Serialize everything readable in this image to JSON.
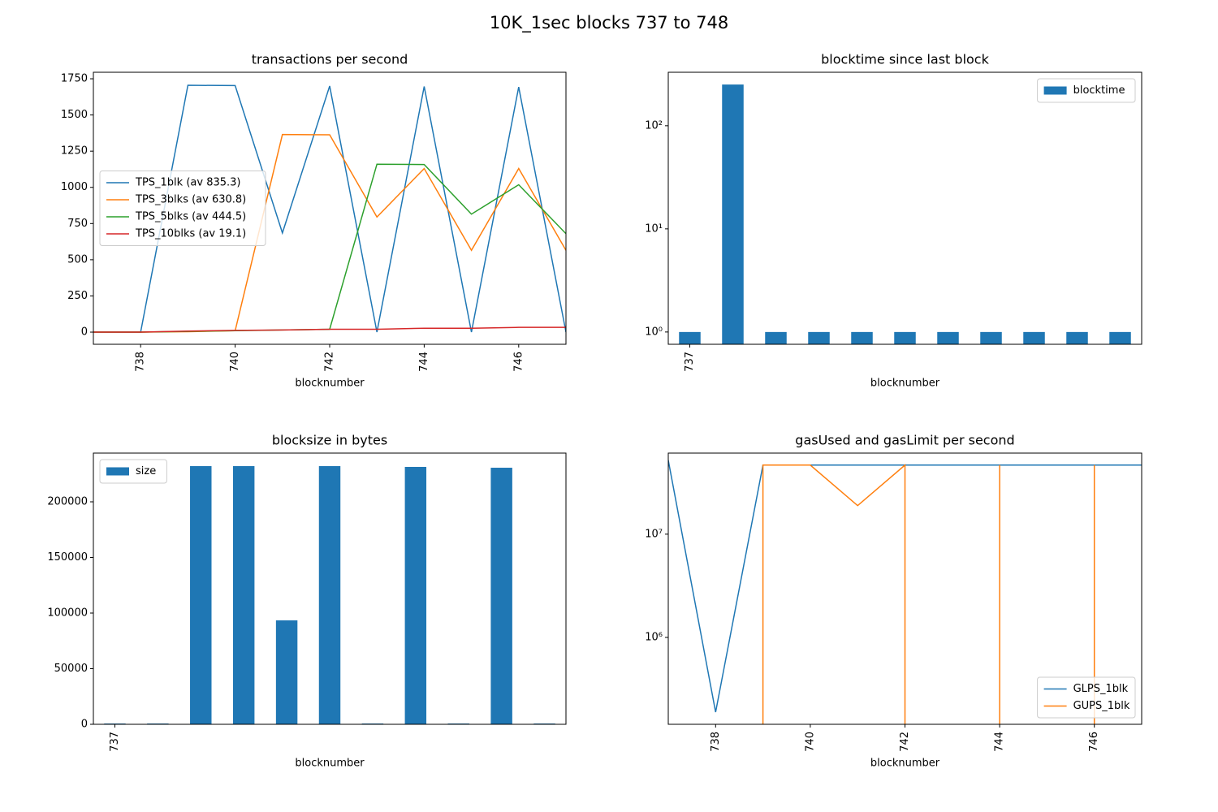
{
  "title": "10K_1sec blocks 737 to 748",
  "chart_data": [
    {
      "type": "line",
      "title": "transactions per second",
      "xlabel": "blocknumber",
      "x": [
        737,
        738,
        739,
        740,
        741,
        742,
        743,
        744,
        745,
        746,
        747
      ],
      "xlim": [
        737,
        747
      ],
      "xticks": [
        738,
        740,
        742,
        744,
        746
      ],
      "ylim": [
        -84,
        1795
      ],
      "yticks": [
        0,
        250,
        500,
        750,
        1000,
        1250,
        1500,
        1750
      ],
      "legend": "center left",
      "series": [
        {
          "name": "TPS_1blk (av 835.3)",
          "color": "#1f77b4",
          "values": [
            0,
            0,
            1705,
            1703,
            685,
            1700,
            0,
            1697,
            0,
            1693,
            0
          ]
        },
        {
          "name": "TPS_3blks (av 630.8)",
          "color": "#ff7f0e",
          "values": [
            0,
            0,
            3,
            10,
            1365,
            1363,
            795,
            1130,
            565,
            1130,
            565
          ]
        },
        {
          "name": "TPS_5blks (av 444.5)",
          "color": "#2ca02c",
          "values": [
            0,
            0,
            5,
            10,
            15,
            20,
            1160,
            1158,
            815,
            1018,
            680
          ]
        },
        {
          "name": "TPS_10blks (av 19.1)",
          "color": "#d62728",
          "values": [
            0,
            0,
            7,
            12,
            15,
            20,
            20,
            27,
            27,
            33,
            33
          ]
        }
      ]
    },
    {
      "type": "bar",
      "title": "blocktime since last block",
      "xlabel": "blocknumber",
      "log_y": true,
      "categories": [
        "737",
        null,
        null,
        null,
        null,
        null,
        null,
        null,
        null,
        null,
        null
      ],
      "ylim": [
        0.76,
        330
      ],
      "yticks": [
        {
          "value": 1,
          "label": "10⁰"
        },
        {
          "value": 10,
          "label": "10¹"
        },
        {
          "value": 100,
          "label": "10²"
        }
      ],
      "legend": "upper right",
      "series": [
        {
          "name": "blocktime",
          "color": "#1f77b4",
          "values": [
            1,
            251,
            1,
            1,
            1,
            1,
            1,
            1,
            1,
            1,
            1
          ]
        }
      ]
    },
    {
      "type": "bar",
      "title": "blocksize in bytes",
      "xlabel": "blocknumber",
      "categories": [
        "737",
        null,
        null,
        null,
        null,
        null,
        null,
        null,
        null,
        null,
        null
      ],
      "ylim": [
        0,
        243800
      ],
      "yticks": [
        0,
        50000,
        100000,
        150000,
        200000
      ],
      "legend": "upper left",
      "series": [
        {
          "name": "size",
          "color": "#1f77b4",
          "values": [
            700,
            700,
            232100,
            232100,
            93430,
            232100,
            700,
            231400,
            700,
            230650,
            700
          ]
        }
      ]
    },
    {
      "type": "line",
      "title": "gasUsed and gasLimit per second",
      "xlabel": "blocknumber",
      "log_y": true,
      "x": [
        737,
        738,
        739,
        740,
        741,
        742,
        743,
        744,
        745,
        746,
        747
      ],
      "xlim": [
        737,
        747
      ],
      "xticks": [
        738,
        740,
        742,
        744,
        746
      ],
      "ylim": [
        144000,
        61000000
      ],
      "yticks": [
        {
          "value": 1000000,
          "label": "10⁶"
        },
        {
          "value": 10000000,
          "label": "10⁷"
        }
      ],
      "legend": "lower right",
      "series": [
        {
          "name": "GLPS_1blk",
          "color": "#1f77b4",
          "values": [
            52000000,
            189000,
            46700000,
            46700000,
            46700000,
            46700000,
            46700000,
            46700000,
            46700000,
            46700000,
            46700000
          ]
        },
        {
          "name": "GUPS_1blk",
          "color": "#ff7f0e",
          "values": [
            0,
            0,
            46700000,
            46700000,
            18900000,
            46700000,
            0,
            46700000,
            0,
            46700000,
            0
          ]
        }
      ]
    }
  ]
}
